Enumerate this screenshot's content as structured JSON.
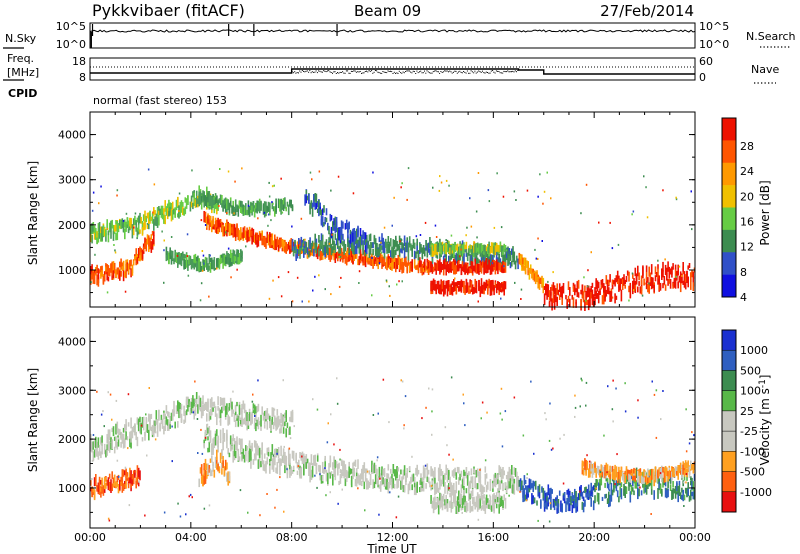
{
  "header": {
    "radar": "Pykkvibaer (fitACF)",
    "beam": "Beam 09",
    "date": "27/Feb/2014"
  },
  "nsky_panel": {
    "left_label": "N.Sky",
    "left_ticks": [
      "10^5",
      "10^0"
    ],
    "right_label": "N.Search",
    "right_ticks": [
      "10^5",
      "10^0"
    ]
  },
  "freq_panel": {
    "left_label_line1": "Freq.",
    "left_label_line2": "[MHz]",
    "left_ticks": [
      "18",
      "8"
    ],
    "right_label": "Nave",
    "right_ticks": [
      "60",
      "0"
    ],
    "cpid_label": "CPID"
  },
  "cpid_text": "normal (fast stereo) 153",
  "colors": {
    "power_scale": [
      "#1010e0",
      "#3050c8",
      "#3c8c50",
      "#4a9a5a",
      "#66cc44",
      "#f0c000",
      "#ff9900",
      "#ff5500",
      "#ee1100"
    ],
    "velocity_scale": [
      "#1a30d0",
      "#2f5fc0",
      "#3c8c50",
      "#58b848",
      "#c8c8c0",
      "#c8c8c0",
      "#ffa020",
      "#ff6010",
      "#e81010"
    ]
  },
  "chart_data": [
    {
      "type": "heatmap",
      "name": "Power",
      "ylabel": "Slant Range [km]",
      "yticks": [
        "4000",
        "3000",
        "2000",
        "1000"
      ],
      "ylim": [
        180,
        4500
      ],
      "xlim": [
        "00:00",
        "24:00"
      ],
      "colorbar_label": "Power [dB]",
      "colorbar_ticks": [
        "28",
        "24",
        "20",
        "16",
        "12",
        "8",
        "4"
      ],
      "colorbar_range": [
        0,
        32
      ],
      "bands": [
        {
          "t": [
            0,
            2,
            4.3,
            5
          ],
          "r": [
            1780,
            2000,
            2600,
            2500
          ],
          "w": 350,
          "color_index": 4
        },
        {
          "t": [
            4.3,
            6,
            8
          ],
          "r": [
            2600,
            2350,
            2400
          ],
          "w": 200,
          "color_index": 3
        },
        {
          "t": [
            0,
            1.5,
            2.5
          ],
          "r": [
            850,
            1000,
            1700
          ],
          "w": 300,
          "color_index": 7
        },
        {
          "t": [
            4.5,
            6,
            8,
            10,
            12,
            13.5
          ],
          "r": [
            2100,
            1800,
            1500,
            1300,
            1150,
            1050
          ],
          "w": 180,
          "color_index": 7
        },
        {
          "t": [
            8,
            10,
            12,
            14,
            16,
            17
          ],
          "r": [
            1450,
            1600,
            1500,
            1400,
            1300,
            1250
          ],
          "w": 350,
          "color_index": 2
        },
        {
          "t": [
            13.5,
            16.5
          ],
          "r": [
            1450,
            1450
          ],
          "w": 120,
          "color_index": 4
        },
        {
          "t": [
            13.5,
            16.5
          ],
          "r": [
            1050,
            1050
          ],
          "w": 160,
          "color_index": 8
        },
        {
          "t": [
            13.5,
            16.5
          ],
          "r": [
            600,
            600
          ],
          "w": 200,
          "color_index": 8
        },
        {
          "t": [
            17,
            18
          ],
          "r": [
            1200,
            600
          ],
          "w": 200,
          "color_index": 6
        },
        {
          "t": [
            18,
            20,
            22,
            24
          ],
          "r": [
            350,
            450,
            800,
            850
          ],
          "w": 500,
          "color_index": 8
        },
        {
          "t": [
            3,
            4.5,
            6
          ],
          "r": [
            1300,
            1100,
            1300
          ],
          "w": 200,
          "color_index": 3
        },
        {
          "t": [
            8.5,
            9.5,
            11
          ],
          "r": [
            2700,
            2000,
            1600
          ],
          "w": 400,
          "color_index": 1
        }
      ]
    },
    {
      "type": "heatmap",
      "name": "Velocity",
      "ylabel": "Slant Range [km]",
      "yticks": [
        "4000",
        "3000",
        "2000",
        "1000"
      ],
      "ylim": [
        180,
        4500
      ],
      "xlim": [
        "00:00",
        "24:00"
      ],
      "xticks": [
        "00:00",
        "04:00",
        "08:00",
        "12:00",
        "16:00",
        "20:00",
        "00:00"
      ],
      "xlabel": "Time UT",
      "colorbar_label": "Velocity [m s^-1]",
      "colorbar_ticks": [
        "1000",
        "500",
        "100",
        "25",
        "-25",
        "-100",
        "-500",
        "-1000"
      ],
      "bands": [
        {
          "t": [
            0,
            2,
            4.3,
            6,
            8
          ],
          "r": [
            1800,
            2200,
            2700,
            2500,
            2300
          ],
          "w": 450,
          "color_index": 4
        },
        {
          "t": [
            4.5,
            7,
            10,
            13,
            17
          ],
          "r": [
            2000,
            1600,
            1300,
            1150,
            1150
          ],
          "w": 450,
          "color_index": 4
        },
        {
          "t": [
            13.5,
            16.5
          ],
          "r": [
            700,
            700
          ],
          "w": 300,
          "color_index": 4
        },
        {
          "t": [
            0,
            1,
            2
          ],
          "r": [
            950,
            1100,
            1200
          ],
          "w": 350,
          "color_index": 7
        },
        {
          "t": [
            4.3,
            5,
            5.5
          ],
          "r": [
            1200,
            1500,
            1300
          ],
          "w": 350,
          "color_index": 6
        },
        {
          "t": [
            17,
            18.5,
            20
          ],
          "r": [
            1000,
            700,
            800
          ],
          "w": 400,
          "color_index": 1
        },
        {
          "t": [
            20,
            22,
            24
          ],
          "r": [
            900,
            1100,
            1000
          ],
          "w": 500,
          "color_index": 2
        },
        {
          "t": [
            19.5,
            22,
            24
          ],
          "r": [
            1400,
            1200,
            1400
          ],
          "w": 200,
          "color_index": 6
        }
      ]
    }
  ]
}
